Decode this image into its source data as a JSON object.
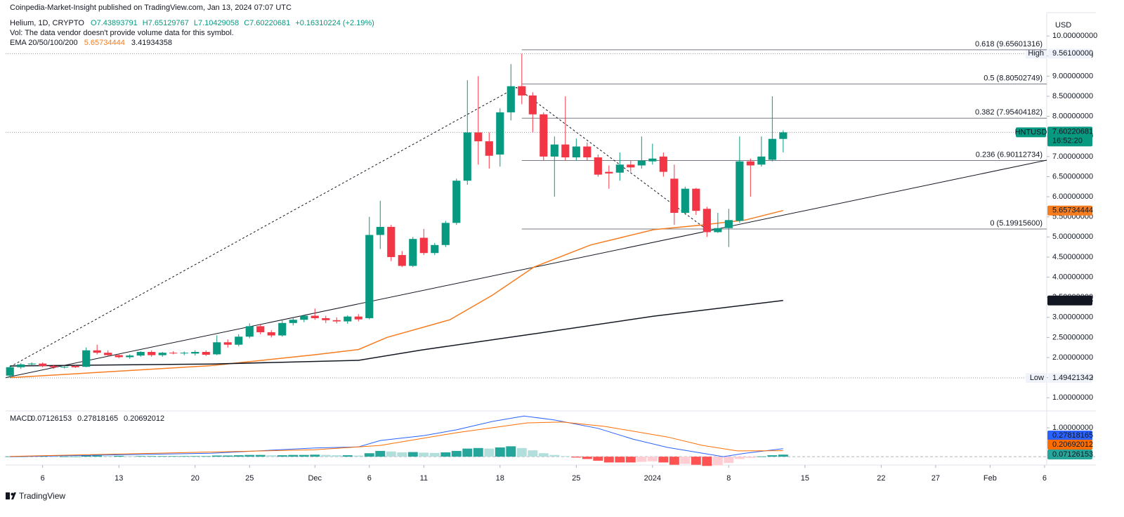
{
  "header": {
    "published": "Coinpedia-Market-Insight published on TradingView.com, Jan 13, 2024 07:07 UTC",
    "symbol_line": "Helium, 1D, CRYPTO",
    "ohlc": [
      "O7.43893791",
      "H7.65129767",
      "L7.10429058",
      "C7.60220681",
      "+0.16310224 (+2.19%)"
    ],
    "volume_note": "Vol: The data vendor doesn't provide volume data for this symbol.",
    "ema_label": "EMA 20/50/100/200",
    "currency": "USD",
    "footer": "TradingView"
  },
  "chart_data": [
    {
      "type": "candlestick",
      "symbol": "HNTUSD",
      "countdown": "16:52:20",
      "up_color": "#089981",
      "down_color": "#f23645",
      "grid": false,
      "xlim": [
        -0.4,
        95.2
      ],
      "xticks": [
        {
          "value": 3,
          "label": "6"
        },
        {
          "value": 10,
          "label": "13"
        },
        {
          "value": 17,
          "label": "20"
        },
        {
          "value": 22,
          "label": "25"
        },
        {
          "value": 28,
          "label": "Dec"
        },
        {
          "value": 33,
          "label": "6"
        },
        {
          "value": 38,
          "label": "11"
        },
        {
          "value": 45,
          "label": "18"
        },
        {
          "value": 52,
          "label": "25"
        },
        {
          "value": 59,
          "label": "2024"
        },
        {
          "value": 66,
          "label": "8"
        },
        {
          "value": 73,
          "label": "15"
        },
        {
          "value": 80,
          "label": "22"
        },
        {
          "value": 85,
          "label": "27"
        },
        {
          "value": 90,
          "label": "Feb"
        },
        {
          "value": 95,
          "label": "6"
        }
      ],
      "ylim": [
        0.69,
        10.58
      ],
      "yticks": [
        {
          "value": 1,
          "label": "1.00000000"
        },
        {
          "value": 1.5,
          "label": "1.50000000"
        },
        {
          "value": 2,
          "label": "2.00000000"
        },
        {
          "value": 2.5,
          "label": "2.50000000"
        },
        {
          "value": 3,
          "label": "3.00000000"
        },
        {
          "value": 3.5,
          "label": "3.50000000"
        },
        {
          "value": 4,
          "label": "4.00000000"
        },
        {
          "value": 4.5,
          "label": "4.50000000"
        },
        {
          "value": 5,
          "label": "5.00000000"
        },
        {
          "value": 5.5,
          "label": "5.50000000"
        },
        {
          "value": 6,
          "label": "6.00000000"
        },
        {
          "value": 6.5,
          "label": "6.50000000"
        },
        {
          "value": 7,
          "label": "7.00000000"
        },
        {
          "value": 7.5,
          "label": "7.50000000"
        },
        {
          "value": 8,
          "label": "8.00000000"
        },
        {
          "value": 8.5,
          "label": "8.50000000"
        },
        {
          "value": 9,
          "label": "9.00000000"
        },
        {
          "value": 9.5,
          "label": "9.50000000"
        },
        {
          "value": 10,
          "label": "10.00000000"
        }
      ],
      "open": [
        1.55,
        1.76,
        1.83,
        1.85,
        1.79,
        1.76,
        1.79,
        1.77,
        2.18,
        2.12,
        2.06,
        2.01,
        2.05,
        2.14,
        2.06,
        2.12,
        2.11,
        2.1,
        2.14,
        2.08,
        2.38,
        2.32,
        2.52,
        2.78,
        2.63,
        2.55,
        2.86,
        2.94,
        3.04,
        2.98,
        2.93,
        2.9,
        3.02,
        2.98,
        5.05,
        5.25,
        4.55,
        4.28,
        4.98,
        4.6,
        4.8,
        5.35,
        6.4,
        7.6,
        7.38,
        7.05,
        8.1,
        8.75,
        8.52,
        8.05,
        7.0,
        7.3,
        6.98,
        7.25,
        6.98,
        6.62,
        6.6,
        6.8,
        6.78,
        6.88,
        7.0,
        6.45,
        5.6,
        6.2,
        5.7,
        5.12,
        5.22,
        5.4,
        6.88,
        6.8,
        6.92,
        7.43893791
      ],
      "high": [
        1.8,
        1.86,
        1.88,
        1.88,
        1.82,
        1.8,
        1.82,
        2.25,
        2.32,
        2.18,
        2.1,
        2.08,
        2.16,
        2.18,
        2.14,
        2.16,
        2.15,
        2.18,
        2.18,
        2.55,
        2.45,
        2.58,
        2.85,
        2.82,
        2.68,
        2.92,
        2.98,
        3.06,
        3.22,
        3.04,
        3.0,
        3.05,
        3.08,
        5.5,
        5.9,
        5.3,
        4.65,
        5.0,
        5.2,
        4.85,
        5.4,
        6.45,
        8.9,
        9.0,
        7.6,
        8.2,
        9.3,
        9.56,
        8.6,
        8.1,
        7.5,
        8.5,
        7.45,
        7.35,
        7.05,
        6.78,
        7.1,
        6.9,
        7.5,
        7.32,
        7.1,
        6.8,
        6.25,
        6.22,
        5.75,
        5.6,
        5.7,
        7.5,
        6.95,
        7.5,
        8.5,
        7.65129767
      ],
      "low": [
        1.5,
        1.72,
        1.8,
        1.76,
        1.72,
        1.73,
        1.74,
        1.76,
        2.08,
        2.02,
        1.98,
        1.97,
        2.02,
        2.02,
        2.02,
        2.08,
        2.06,
        2.05,
        2.04,
        2.06,
        2.25,
        2.28,
        2.48,
        2.58,
        2.5,
        2.52,
        2.8,
        2.88,
        2.94,
        2.86,
        2.85,
        2.84,
        2.9,
        2.95,
        4.7,
        4.4,
        4.25,
        4.25,
        4.55,
        4.55,
        4.75,
        5.3,
        6.3,
        6.8,
        6.7,
        6.75,
        7.9,
        8.3,
        7.6,
        6.9,
        6.0,
        6.9,
        6.9,
        6.9,
        6.5,
        6.2,
        6.4,
        6.62,
        6.7,
        6.8,
        6.5,
        5.3,
        5.55,
        5.55,
        5.0,
        5.1,
        4.75,
        5.35,
        6.0,
        6.75,
        6.88,
        7.10429058
      ],
      "close": [
        1.76,
        1.83,
        1.85,
        1.79,
        1.76,
        1.77,
        1.76,
        2.18,
        2.12,
        2.06,
        2.01,
        2.05,
        2.14,
        2.06,
        2.12,
        2.11,
        2.12,
        2.14,
        2.07,
        2.38,
        2.32,
        2.52,
        2.78,
        2.63,
        2.55,
        2.86,
        2.94,
        3.04,
        2.98,
        2.93,
        2.9,
        3.02,
        2.95,
        5.05,
        5.25,
        4.5,
        4.28,
        4.95,
        4.6,
        4.8,
        5.35,
        6.4,
        7.6,
        7.38,
        7.02,
        8.1,
        8.75,
        8.52,
        8.05,
        7.0,
        7.3,
        6.98,
        7.25,
        6.98,
        6.55,
        6.58,
        6.8,
        6.73,
        6.9,
        6.95,
        6.62,
        5.6,
        6.2,
        5.65,
        5.12,
        5.22,
        5.42,
        6.88,
        6.78,
        7.0,
        7.44,
        7.60220681
      ],
      "series": [
        {
          "name": "EMA 50",
          "color": "#f57c1f",
          "x": [
            0,
            18.5,
            28,
            32,
            34.6,
            40.4,
            44.3,
            48.1,
            53.3,
            59.1,
            63.6,
            67.5,
            71
          ],
          "values": [
            1.5,
            1.8,
            2.07,
            2.2,
            2.5,
            2.94,
            3.55,
            4.25,
            4.8,
            5.18,
            5.3,
            5.42,
            5.65734444
          ]
        },
        {
          "name": "EMA 200",
          "color": "#131722",
          "x": [
            0,
            18.5,
            32,
            37.8,
            48.1,
            59.1,
            71
          ],
          "values": [
            1.79,
            1.84,
            1.93,
            2.19,
            2.59,
            3.03,
            3.41934358
          ]
        }
      ],
      "trendline": {
        "color": "#131722",
        "x": [
          -0.4,
          95.2
        ],
        "values": [
          1.5,
          6.91
        ]
      },
      "swing_line": {
        "color": "#131722",
        "x": [
          0,
          46.5,
          64
        ],
        "values": [
          1.77,
          8.72,
          5.18
        ]
      },
      "fib": {
        "start": 47,
        "color": "#787b86",
        "levels": [
          {
            "value": 9.65601316,
            "label": "0.618 (9.65601316)"
          },
          {
            "value": 8.80502749,
            "label": "0.5 (8.80502749)"
          },
          {
            "value": 7.95404182,
            "label": "0.382 (7.95404182)"
          },
          {
            "value": 6.90112734,
            "label": "0.236 (6.90112734)"
          },
          {
            "value": 5.199156,
            "label": "0 (5.19915600)"
          }
        ]
      },
      "extremes": [
        {
          "label": "High",
          "value": 9.561,
          "value_label": "9.56100000"
        },
        {
          "label": "Low",
          "value": 1.49421342
        }
      ]
    },
    {
      "type": "macd",
      "title": "MACD",
      "ylim": [
        -0.24,
        1.56
      ],
      "yticks": [
        {
          "value": 1,
          "label": "1.00000000"
        }
      ],
      "histogram_colors": [
        "#26a69a",
        "#b2dfdb",
        "#ff5252",
        "#ffcdd2"
      ],
      "histogram": [
        0.01,
        0.01,
        0.02,
        0.02,
        0.01,
        0.01,
        0.01,
        0.04,
        0.04,
        0.03,
        0.03,
        0.02,
        0.02,
        0.02,
        0.02,
        0.02,
        0.02,
        0.02,
        0.02,
        0.04,
        0.04,
        0.05,
        0.06,
        0.06,
        0.05,
        0.05,
        0.06,
        0.06,
        0.07,
        0.06,
        0.05,
        0.05,
        0.04,
        0.12,
        0.2,
        0.18,
        0.15,
        0.16,
        0.14,
        0.13,
        0.15,
        0.2,
        0.28,
        0.3,
        0.28,
        0.32,
        0.36,
        0.3,
        0.22,
        0.12,
        0.06,
        0.02,
        -0.03,
        -0.08,
        -0.14,
        -0.2,
        -0.2,
        -0.2,
        -0.18,
        -0.16,
        -0.2,
        -0.28,
        -0.25,
        -0.28,
        -0.32,
        -0.3,
        -0.22,
        -0.08,
        -0.04,
        0.01,
        0.05,
        0.07126153
      ],
      "series": [
        {
          "name": "MACD",
          "color": "#2962ff",
          "x": [
            0,
            18.5,
            28,
            32,
            34,
            38,
            41,
            44.3,
            47.2,
            50,
            54,
            57.2,
            60.4,
            63.6,
            65.5,
            67.5,
            71
          ],
          "values": [
            0,
            0.12,
            0.3,
            0.34,
            0.56,
            0.73,
            0.93,
            1.22,
            1.41,
            1.27,
            0.98,
            0.61,
            0.32,
            0.12,
            0,
            0.12,
            0.27818165
          ]
        },
        {
          "name": "Signal",
          "color": "#ff6d00",
          "x": [
            0,
            28,
            34,
            41,
            47.5,
            50.7,
            54.6,
            60.4,
            63.6,
            66.8,
            71
          ],
          "values": [
            0.01,
            0.24,
            0.39,
            0.83,
            1.17,
            1.2,
            1.05,
            0.68,
            0.39,
            0.2,
            0.20692012
          ]
        }
      ]
    }
  ]
}
